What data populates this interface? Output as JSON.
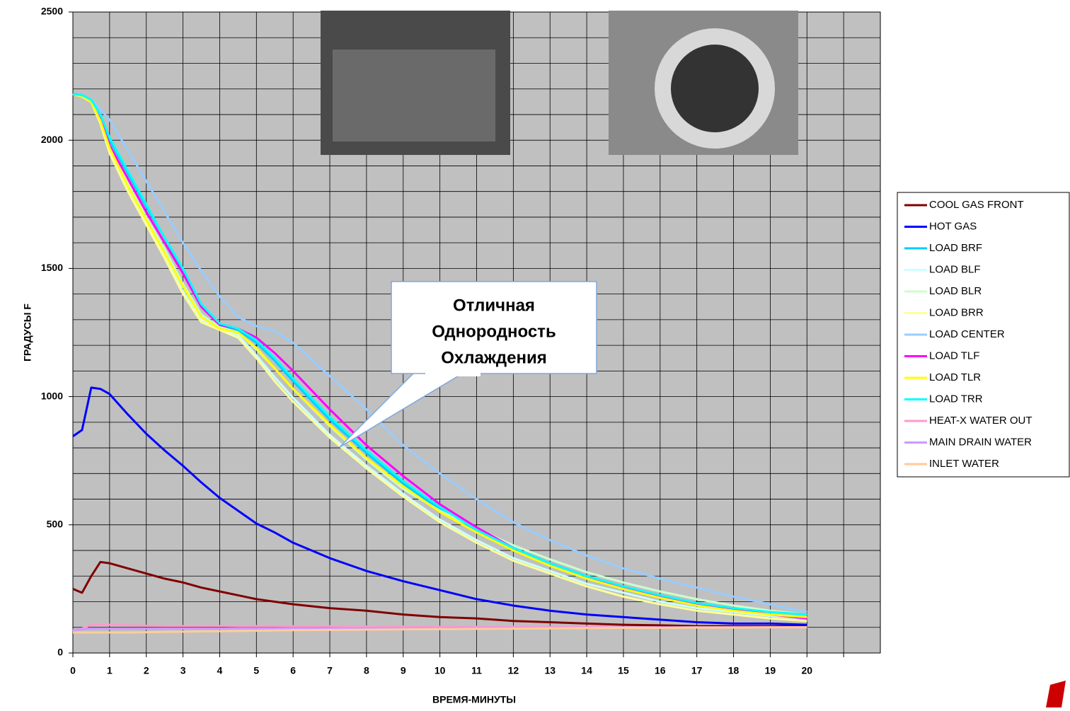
{
  "chart_data": {
    "type": "line",
    "ylabel": "ГРАДУСЫ F",
    "xlabel": "ВРЕМЯ-МИНУТЫ",
    "annotation": [
      "Отличная",
      "Однородность",
      "Охлаждения"
    ],
    "xlim": [
      0,
      22
    ],
    "xticks": [
      0,
      1,
      2,
      3,
      4,
      5,
      6,
      7,
      8,
      9,
      10,
      11,
      12,
      13,
      14,
      15,
      16,
      17,
      18,
      19,
      20
    ],
    "xminorticks": [
      21
    ],
    "ylim": [
      0,
      2500
    ],
    "yticks": [
      0,
      500,
      1000,
      1500,
      2000,
      2500
    ],
    "yminorticks": [
      100,
      200,
      300,
      400,
      600,
      700,
      800,
      900,
      1100,
      1200,
      1300,
      1400,
      1600,
      1700,
      1800,
      1900,
      2100,
      2200,
      2300,
      2400
    ],
    "grid": true,
    "legend": "right",
    "x": [
      0,
      0.25,
      0.5,
      0.75,
      1,
      1.5,
      2,
      2.5,
      3,
      3.5,
      4,
      4.5,
      5,
      5.5,
      6,
      7,
      8,
      9,
      10,
      11,
      12,
      13,
      14,
      15,
      16,
      17,
      18,
      19,
      20
    ],
    "series": [
      {
        "name": "COOL GAS FRONT",
        "color": "#800000",
        "values": [
          250,
          235,
          300,
          355,
          350,
          330,
          310,
          290,
          275,
          255,
          240,
          225,
          210,
          200,
          190,
          175,
          165,
          150,
          140,
          135,
          125,
          120,
          115,
          110,
          108,
          105,
          105,
          105,
          105
        ]
      },
      {
        "name": "HOT GAS",
        "color": "#0000ff",
        "values": [
          845,
          870,
          1035,
          1030,
          1010,
          930,
          855,
          790,
          730,
          665,
          605,
          555,
          505,
          470,
          430,
          370,
          320,
          280,
          245,
          210,
          185,
          165,
          150,
          140,
          130,
          120,
          115,
          115,
          110
        ]
      },
      {
        "name": "LOAD BRF",
        "color": "#00ccff",
        "values": [
          2180,
          2175,
          2155,
          2090,
          2000,
          1870,
          1740,
          1620,
          1490,
          1350,
          1280,
          1260,
          1210,
          1140,
          1060,
          910,
          780,
          660,
          560,
          470,
          400,
          340,
          290,
          250,
          215,
          185,
          165,
          150,
          140
        ]
      },
      {
        "name": "LOAD BLF",
        "color": "#ccffff",
        "values": [
          2180,
          2172,
          2150,
          2070,
          1960,
          1810,
          1680,
          1550,
          1410,
          1300,
          1265,
          1240,
          1160,
          1075,
          995,
          850,
          730,
          620,
          520,
          440,
          370,
          320,
          270,
          235,
          200,
          175,
          160,
          145,
          135
        ]
      },
      {
        "name": "LOAD BLR",
        "color": "#ccffcc",
        "values": [
          2180,
          2173,
          2152,
          2080,
          1975,
          1830,
          1700,
          1575,
          1440,
          1320,
          1270,
          1250,
          1185,
          1110,
          1030,
          885,
          755,
          640,
          555,
          485,
          420,
          365,
          315,
          275,
          240,
          210,
          185,
          165,
          150
        ]
      },
      {
        "name": "LOAD BRR",
        "color": "#ffff99",
        "values": [
          2180,
          2170,
          2148,
          2065,
          1950,
          1800,
          1670,
          1540,
          1400,
          1290,
          1260,
          1230,
          1150,
          1060,
          980,
          840,
          720,
          610,
          510,
          430,
          360,
          310,
          260,
          220,
          190,
          165,
          150,
          135,
          125
        ]
      },
      {
        "name": "LOAD CENTER",
        "color": "#99ccff",
        "values": [
          2180,
          2175,
          2160,
          2120,
          2080,
          1960,
          1840,
          1720,
          1600,
          1490,
          1390,
          1310,
          1275,
          1255,
          1210,
          1080,
          950,
          810,
          700,
          600,
          510,
          440,
          380,
          330,
          290,
          255,
          220,
          190,
          160
        ]
      },
      {
        "name": "LOAD TLF",
        "color": "#ff00ff",
        "values": [
          2180,
          2175,
          2150,
          2080,
          1980,
          1850,
          1720,
          1600,
          1480,
          1350,
          1280,
          1265,
          1230,
          1170,
          1100,
          950,
          810,
          690,
          580,
          490,
          410,
          350,
          300,
          255,
          220,
          190,
          170,
          150,
          135
        ]
      },
      {
        "name": "LOAD TLR",
        "color": "#ffff00",
        "values": [
          2180,
          2172,
          2150,
          2075,
          1970,
          1820,
          1690,
          1560,
          1430,
          1310,
          1265,
          1250,
          1190,
          1110,
          1030,
          890,
          760,
          650,
          550,
          470,
          400,
          340,
          290,
          250,
          215,
          185,
          165,
          150,
          140
        ]
      },
      {
        "name": "LOAD TRR",
        "color": "#00ffff",
        "values": [
          2180,
          2176,
          2158,
          2100,
          2010,
          1880,
          1750,
          1620,
          1500,
          1360,
          1285,
          1265,
          1220,
          1150,
          1070,
          920,
          790,
          670,
          570,
          480,
          410,
          350,
          300,
          260,
          225,
          195,
          175,
          160,
          150
        ]
      },
      {
        "name": "HEAT-X WATER OUT",
        "color": "#ff99cc",
        "values": [
          85,
          95,
          110,
          110,
          110,
          108,
          106,
          105,
          105,
          105,
          105,
          105,
          105,
          105,
          104,
          104,
          103,
          103,
          102,
          102,
          102,
          101,
          101,
          100,
          100,
          100,
          100,
          100,
          100
        ]
      },
      {
        "name": "MAIN DRAIN WATER",
        "color": "#cc99ff",
        "values": [
          90,
          92,
          95,
          95,
          95,
          95,
          95,
          95,
          95,
          95,
          95,
          96,
          96,
          96,
          96,
          96,
          97,
          97,
          97,
          98,
          98,
          98,
          99,
          99,
          99,
          100,
          100,
          100,
          100
        ]
      },
      {
        "name": "INLET WATER",
        "color": "#ffcc99",
        "values": [
          80,
          80,
          80,
          80,
          80,
          80,
          81,
          82,
          83,
          84,
          85,
          86,
          87,
          88,
          89,
          90,
          91,
          92,
          93,
          94,
          95,
          96,
          97,
          98,
          98,
          99,
          99,
          100,
          100
        ]
      }
    ]
  }
}
